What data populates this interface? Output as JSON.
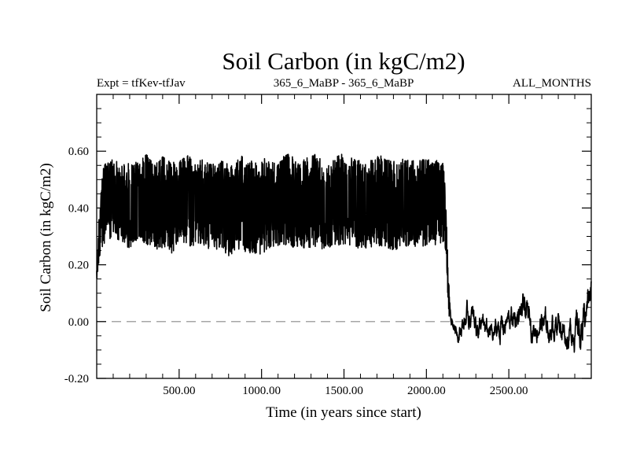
{
  "chart_data": {
    "type": "line",
    "title": "Soil Carbon (in kgC/m2)",
    "subtitle_left": "Expt = tfKev-tfJav",
    "subtitle_center": "365_6_MaBP - 365_6_MaBP",
    "subtitle_right": "ALL_MONTHS",
    "xlabel": "Time (in years since start)",
    "ylabel": "Soil Carbon (in kgC/m2)",
    "xlim": [
      0,
      3000
    ],
    "ylim": [
      -0.2,
      0.8
    ],
    "x_ticks": [
      500,
      1000,
      1500,
      2000,
      2500
    ],
    "x_tick_labels": [
      "500.00",
      "1000.00",
      "1500.00",
      "2000.00",
      "2500.00"
    ],
    "y_ticks": [
      -0.2,
      0.0,
      0.2,
      0.4,
      0.6
    ],
    "y_tick_labels": [
      "-0.20",
      "0.00",
      "0.20",
      "0.40",
      "0.60"
    ],
    "reference_line": {
      "y": 0.0,
      "style": "dashed",
      "color": "#888888"
    },
    "series_color": "#000000",
    "series": [
      {
        "x": [
          0,
          15,
          30,
          50,
          100,
          150,
          200,
          250,
          300,
          350,
          400,
          450,
          500,
          550,
          600,
          650,
          700,
          750,
          800,
          850,
          900,
          950,
          1000,
          1050,
          1100,
          1150,
          1200,
          1250,
          1300,
          1350,
          1400,
          1450,
          1500,
          1550,
          1600,
          1650,
          1700,
          1750,
          1800,
          1850,
          1900,
          1950,
          2000,
          2050,
          2100,
          2110,
          2120,
          2130,
          2140,
          2160,
          2180,
          2200,
          2250,
          2300,
          2350,
          2400,
          2450,
          2500,
          2550,
          2600,
          2650,
          2700,
          2750,
          2800,
          2850,
          2900,
          2950,
          3000
        ],
        "mean": [
          0.16,
          0.3,
          0.38,
          0.42,
          0.43,
          0.42,
          0.41,
          0.42,
          0.43,
          0.41,
          0.42,
          0.4,
          0.42,
          0.43,
          0.41,
          0.42,
          0.4,
          0.42,
          0.39,
          0.41,
          0.42,
          0.4,
          0.41,
          0.42,
          0.41,
          0.43,
          0.42,
          0.41,
          0.43,
          0.42,
          0.41,
          0.42,
          0.43,
          0.42,
          0.41,
          0.42,
          0.43,
          0.42,
          0.41,
          0.42,
          0.42,
          0.41,
          0.42,
          0.42,
          0.42,
          0.4,
          0.3,
          0.15,
          0.05,
          0.0,
          -0.02,
          -0.03,
          0.02,
          0.0,
          -0.03,
          -0.05,
          -0.02,
          0.0,
          0.02,
          0.03,
          -0.02,
          0.0,
          -0.03,
          0.01,
          -0.05,
          -0.02,
          -0.04,
          0.15
        ],
        "min": [
          0.14,
          0.22,
          0.26,
          0.28,
          0.3,
          0.27,
          0.26,
          0.29,
          0.27,
          0.24,
          0.25,
          0.23,
          0.28,
          0.27,
          0.26,
          0.27,
          0.24,
          0.26,
          0.21,
          0.25,
          0.24,
          0.24,
          0.22,
          0.26,
          0.26,
          0.27,
          0.26,
          0.26,
          0.26,
          0.25,
          0.26,
          0.27,
          0.27,
          0.26,
          0.25,
          0.26,
          0.27,
          0.26,
          0.25,
          0.26,
          0.27,
          0.26,
          0.27,
          0.27,
          0.28,
          0.28,
          0.2,
          0.08,
          0.0,
          -0.04,
          -0.07,
          -0.08,
          -0.06,
          -0.07,
          -0.08,
          -0.09,
          -0.1,
          -0.08,
          -0.06,
          -0.07,
          -0.1,
          -0.08,
          -0.1,
          -0.07,
          -0.13,
          -0.11,
          -0.12,
          0.0
        ],
        "max": [
          0.18,
          0.38,
          0.52,
          0.57,
          0.58,
          0.56,
          0.57,
          0.57,
          0.59,
          0.55,
          0.58,
          0.56,
          0.57,
          0.6,
          0.56,
          0.58,
          0.55,
          0.58,
          0.55,
          0.57,
          0.59,
          0.56,
          0.57,
          0.58,
          0.56,
          0.6,
          0.58,
          0.57,
          0.61,
          0.58,
          0.57,
          0.59,
          0.6,
          0.58,
          0.57,
          0.58,
          0.6,
          0.58,
          0.57,
          0.58,
          0.58,
          0.57,
          0.58,
          0.58,
          0.57,
          0.5,
          0.38,
          0.22,
          0.1,
          0.06,
          0.04,
          0.05,
          0.1,
          0.12,
          0.06,
          0.08,
          0.1,
          0.08,
          0.12,
          0.13,
          0.07,
          0.1,
          0.06,
          0.12,
          0.07,
          0.1,
          0.14,
          0.18
        ]
      }
    ]
  }
}
